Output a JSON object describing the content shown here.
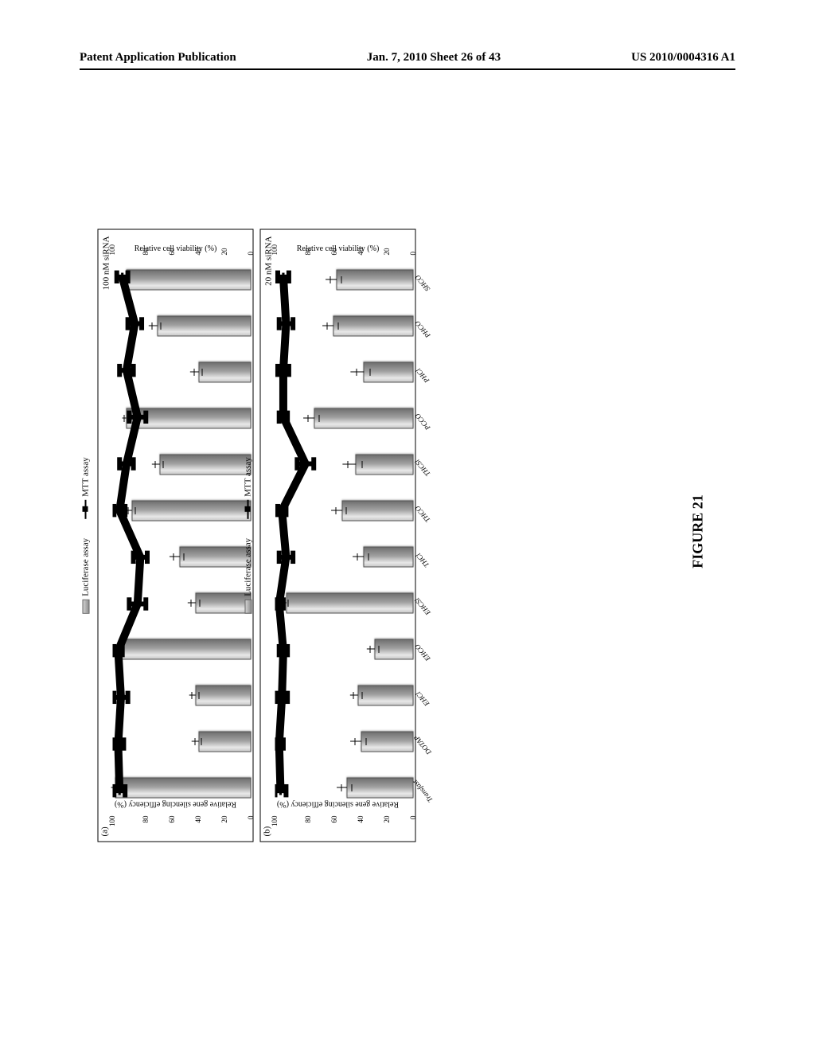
{
  "header": {
    "left": "Patent Application Publication",
    "center": "Jan. 7, 2010  Sheet 26 of 43",
    "right": "US 2010/0004316 A1"
  },
  "legend": {
    "bar_label": "Luciferase assay",
    "line_label": "MTT assay"
  },
  "axes": {
    "y_left_label": "Relative gene silencing efficiency (%)",
    "y_right_label": "Relative cell viability (%)",
    "y_ticks": [
      "0",
      "20",
      "40",
      "60",
      "80",
      "100"
    ],
    "ymin": 0,
    "ymax": 100
  },
  "categories": [
    "Transfast",
    "DOTAP",
    "EHCl",
    "EHCO",
    "EHCSl",
    "THCl",
    "THCO",
    "THCSl",
    "PCCO",
    "PHCl",
    "PHCO",
    "SHCO"
  ],
  "panels": {
    "a": {
      "letter": "(a)",
      "annotation": "100 nM siRNA",
      "bars": [
        98,
        38,
        40,
        94,
        40,
        52,
        86,
        66,
        90,
        38,
        68,
        90
      ],
      "bar_err": [
        3,
        5,
        5,
        3,
        6,
        7,
        5,
        6,
        3,
        6,
        6,
        4
      ],
      "line": [
        95,
        96,
        94,
        96,
        82,
        80,
        95,
        90,
        82,
        90,
        84,
        93
      ],
      "line_err": [
        4,
        4,
        5,
        3,
        6,
        5,
        4,
        5,
        6,
        5,
        5,
        4
      ]
    },
    "b": {
      "letter": "(b)",
      "annotation": "20 nM siRNA",
      "bars": [
        48,
        38,
        40,
        28,
        92,
        36,
        52,
        42,
        72,
        36,
        58,
        56
      ],
      "bar_err": [
        8,
        8,
        6,
        6,
        4,
        8,
        8,
        10,
        8,
        10,
        8,
        8
      ],
      "line": [
        96,
        97,
        95,
        94,
        97,
        92,
        95,
        78,
        94,
        94,
        92,
        94
      ],
      "line_err": [
        4,
        3,
        4,
        3,
        3,
        5,
        3,
        6,
        3,
        4,
        5,
        4
      ]
    }
  },
  "style": {
    "bar_gradient_from": "#c8c8c8",
    "bar_gradient_to": "#707070",
    "line_color": "#000000",
    "marker_size": 6,
    "background": "#ffffff",
    "border_color": "#000000"
  },
  "caption": "FIGURE 21"
}
